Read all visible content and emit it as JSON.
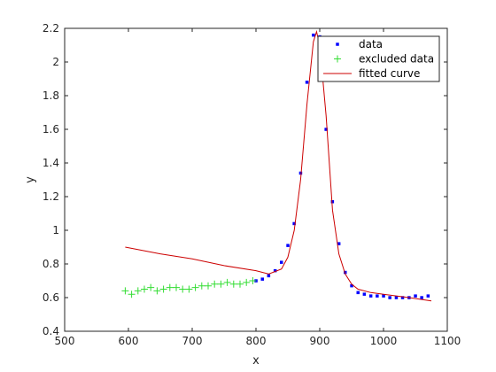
{
  "chart_data": {
    "type": "scatter",
    "title": "",
    "xlabel": "x",
    "ylabel": "y",
    "xlim": [
      500,
      1100
    ],
    "ylim": [
      0.4,
      2.2
    ],
    "xticks": [
      500,
      600,
      700,
      800,
      900,
      1000,
      1100
    ],
    "yticks": [
      0.4,
      0.6,
      0.8,
      1,
      1.2,
      1.4,
      1.6,
      1.8,
      2,
      2.2
    ],
    "xtick_labels": [
      "500",
      "600",
      "700",
      "800",
      "900",
      "1000",
      "1100"
    ],
    "ytick_labels": [
      "0.4",
      "0.6",
      "0.8",
      "1",
      "1.2",
      "1.4",
      "1.6",
      "1.8",
      "2",
      "2.2"
    ],
    "grid": false,
    "legend_position": "top-right",
    "series": [
      {
        "name": "data",
        "kind": "points",
        "marker": "square",
        "color": "#0000ff",
        "x": [
          800,
          810,
          820,
          830,
          840,
          850,
          860,
          870,
          880,
          890,
          900,
          910,
          920,
          930,
          940,
          950,
          960,
          970,
          980,
          990,
          1000,
          1010,
          1020,
          1030,
          1040,
          1050,
          1060,
          1070
        ],
        "y": [
          0.7,
          0.71,
          0.73,
          0.76,
          0.81,
          0.91,
          1.04,
          1.34,
          1.88,
          2.16,
          2.15,
          1.6,
          1.17,
          0.92,
          0.75,
          0.67,
          0.63,
          0.62,
          0.61,
          0.61,
          0.61,
          0.6,
          0.6,
          0.6,
          0.6,
          0.61,
          0.6,
          0.61
        ]
      },
      {
        "name": "excluded data",
        "kind": "points",
        "marker": "plus",
        "color": "#33dd33",
        "x": [
          595,
          605,
          615,
          625,
          635,
          645,
          655,
          665,
          675,
          685,
          695,
          705,
          715,
          725,
          735,
          745,
          755,
          765,
          775,
          785,
          795
        ],
        "y": [
          0.64,
          0.62,
          0.64,
          0.65,
          0.66,
          0.64,
          0.65,
          0.66,
          0.66,
          0.65,
          0.65,
          0.66,
          0.67,
          0.67,
          0.68,
          0.68,
          0.69,
          0.68,
          0.68,
          0.69,
          0.7
        ]
      },
      {
        "name": "fitted curve",
        "kind": "line",
        "color": "#cc0000",
        "x": [
          595,
          650,
          700,
          750,
          800,
          820,
          840,
          850,
          860,
          870,
          880,
          890,
          895,
          900,
          910,
          920,
          930,
          940,
          950,
          960,
          980,
          1000,
          1040,
          1075
        ],
        "y": [
          0.9,
          0.86,
          0.83,
          0.79,
          0.76,
          0.74,
          0.77,
          0.84,
          1.0,
          1.3,
          1.75,
          2.12,
          2.18,
          2.1,
          1.68,
          1.12,
          0.86,
          0.74,
          0.68,
          0.65,
          0.63,
          0.62,
          0.6,
          0.58
        ]
      }
    ]
  }
}
